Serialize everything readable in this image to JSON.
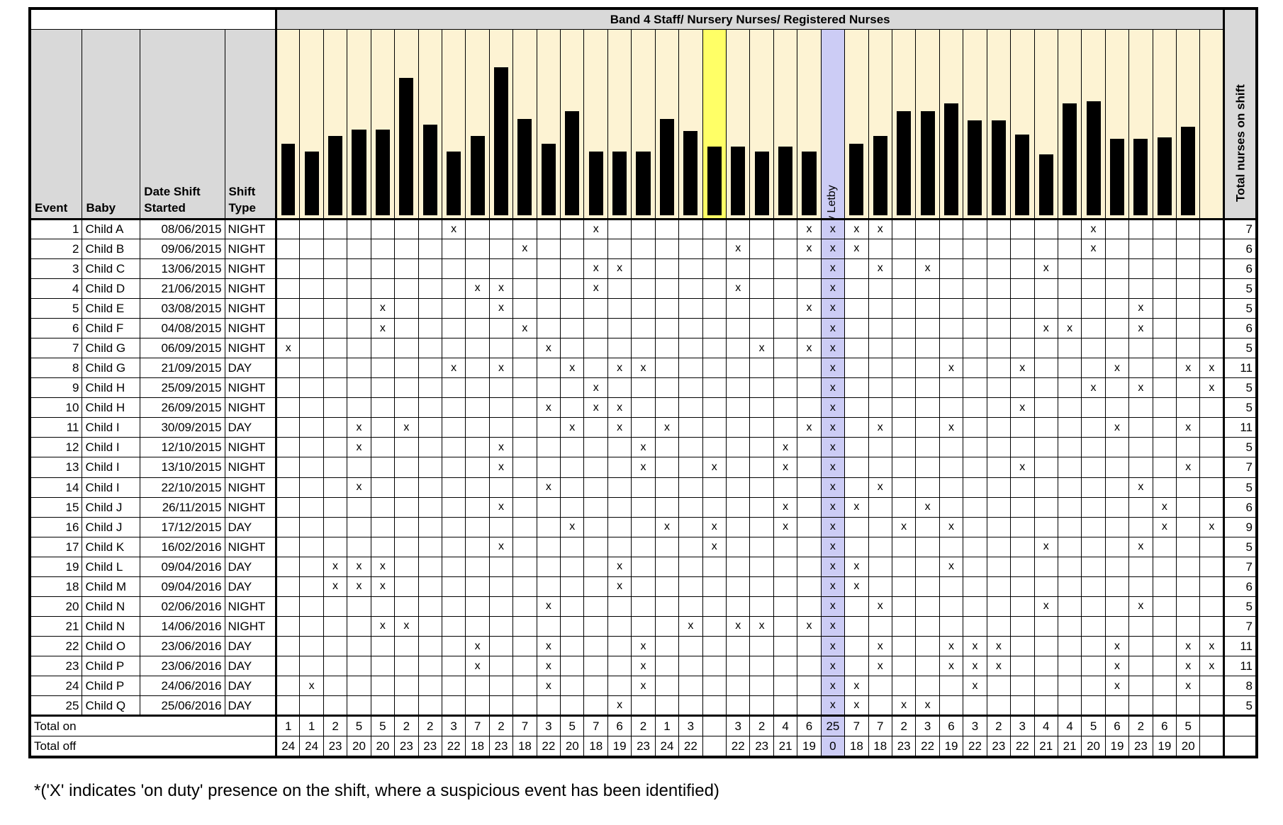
{
  "header": {
    "band_title": "Band 4 Staff/ Nursery Nurses/ Registered Nurses",
    "event": "Event",
    "baby": "Baby",
    "date": "Date Shift Started",
    "shift": "Shift Type",
    "total_col": "Total nurses on shift"
  },
  "named_nurse": {
    "index": 23,
    "name": "Lucy Letby",
    "color": "#ccccf5"
  },
  "yellow_column_index": 18,
  "colors": {
    "bar_bg": "#fdf3d3",
    "yellow": "#ffff66",
    "header_grey": "#d9d9d9"
  },
  "nurse_bar_heights": [
    0.46,
    0.41,
    0.51,
    0.55,
    0.55,
    0.88,
    0.58,
    0.41,
    0.51,
    0.95,
    0.62,
    0.46,
    0.67,
    0.41,
    0.41,
    0.41,
    0.62,
    0.54,
    0.44,
    0.44,
    0.41,
    0.44,
    0.41,
    0,
    0.46,
    0.51,
    0.67,
    0.67,
    0.72,
    0.61,
    0.61,
    0.52,
    0.39,
    0.72,
    0.73,
    0.49,
    0.49,
    0.5,
    0.57
  ],
  "rows": [
    {
      "event": "1",
      "baby": "Child A",
      "date": "08/06/2015",
      "shift": "NIGHT",
      "on": [
        7,
        13,
        22,
        23,
        24,
        25,
        34
      ],
      "total": "7"
    },
    {
      "event": "2",
      "baby": "Child B",
      "date": "09/06/2015",
      "shift": "NIGHT",
      "on": [
        10,
        19,
        22,
        23,
        24,
        34
      ],
      "total": "6"
    },
    {
      "event": "3",
      "baby": "Child C",
      "date": "13/06/2015",
      "shift": "NIGHT",
      "on": [
        13,
        14,
        23,
        25,
        27,
        32
      ],
      "total": "6"
    },
    {
      "event": "4",
      "baby": "Child D",
      "date": "21/06/2015",
      "shift": "NIGHT",
      "on": [
        8,
        9,
        13,
        19,
        23
      ],
      "total": "5"
    },
    {
      "event": "5",
      "baby": "Child E",
      "date": "03/08/2015",
      "shift": "NIGHT",
      "on": [
        4,
        9,
        22,
        23,
        36
      ],
      "total": "5"
    },
    {
      "event": "6",
      "baby": "Child F",
      "date": "04/08/2015",
      "shift": "NIGHT",
      "on": [
        4,
        10,
        23,
        32,
        33,
        36
      ],
      "total": "6"
    },
    {
      "event": "7",
      "baby": "Child G",
      "date": "06/09/2015",
      "shift": "NIGHT",
      "on": [
        0,
        11,
        20,
        22,
        23
      ],
      "total": "5"
    },
    {
      "event": "8",
      "baby": "Child G",
      "date": "21/09/2015",
      "shift": "DAY",
      "on": [
        7,
        9,
        12,
        14,
        15,
        23,
        28,
        31,
        35,
        38,
        39
      ],
      "total": "11"
    },
    {
      "event": "9",
      "baby": "Child H",
      "date": "25/09/2015",
      "shift": "NIGHT",
      "on": [
        13,
        23,
        34,
        36,
        39
      ],
      "total": "5"
    },
    {
      "event": "10",
      "baby": "Child H",
      "date": "26/09/2015",
      "shift": "NIGHT",
      "on": [
        11,
        13,
        14,
        23,
        31
      ],
      "total": "5"
    },
    {
      "event": "11",
      "baby": "Child I",
      "date": "30/09/2015",
      "shift": "DAY",
      "on": [
        3,
        5,
        12,
        14,
        16,
        22,
        23,
        25,
        28,
        35,
        38
      ],
      "total": "11"
    },
    {
      "event": "12",
      "baby": "Child I",
      "date": "12/10/2015",
      "shift": "NIGHT",
      "on": [
        3,
        9,
        15,
        21,
        23
      ],
      "total": "5"
    },
    {
      "event": "13",
      "baby": "Child I",
      "date": "13/10/2015",
      "shift": "NIGHT",
      "on": [
        9,
        15,
        18,
        21,
        23,
        31,
        38
      ],
      "total": "7"
    },
    {
      "event": "14",
      "baby": "Child I",
      "date": "22/10/2015",
      "shift": "NIGHT",
      "on": [
        3,
        11,
        23,
        25,
        36
      ],
      "total": "5"
    },
    {
      "event": "15",
      "baby": "Child J",
      "date": "26/11/2015",
      "shift": "NIGHT",
      "on": [
        9,
        21,
        23,
        24,
        27,
        37
      ],
      "total": "6"
    },
    {
      "event": "16",
      "baby": "Child J",
      "date": "17/12/2015",
      "shift": "DAY",
      "on": [
        12,
        16,
        18,
        21,
        23,
        26,
        28,
        37,
        39
      ],
      "total": "9"
    },
    {
      "event": "17",
      "baby": "Child K",
      "date": "16/02/2016",
      "shift": "NIGHT",
      "on": [
        9,
        18,
        23,
        32,
        36
      ],
      "total": "5"
    },
    {
      "event": "19",
      "baby": "Child L",
      "date": "09/04/2016",
      "shift": "DAY",
      "on": [
        2,
        3,
        4,
        14,
        23,
        24,
        28
      ],
      "total": "7"
    },
    {
      "event": "18",
      "baby": "Child M",
      "date": "09/04/2016",
      "shift": "DAY",
      "on": [
        2,
        3,
        4,
        14,
        23,
        24
      ],
      "total": "6"
    },
    {
      "event": "20",
      "baby": "Child N",
      "date": "02/06/2016",
      "shift": "NIGHT",
      "on": [
        11,
        23,
        25,
        32,
        36
      ],
      "total": "5"
    },
    {
      "event": "21",
      "baby": "Child N",
      "date": "14/06/2016",
      "shift": "NIGHT",
      "on": [
        4,
        5,
        17,
        19,
        20,
        22,
        23
      ],
      "total": "7"
    },
    {
      "event": "22",
      "baby": "Child O",
      "date": "23/06/2016",
      "shift": "DAY",
      "on": [
        8,
        11,
        15,
        23,
        25,
        28,
        29,
        30,
        35,
        38,
        39
      ],
      "total": "11"
    },
    {
      "event": "23",
      "baby": "Child P",
      "date": "23/06/2016",
      "shift": "DAY",
      "on": [
        8,
        11,
        15,
        23,
        25,
        28,
        29,
        30,
        35,
        38,
        39
      ],
      "total": "11"
    },
    {
      "event": "24",
      "baby": "Child P",
      "date": "24/06/2016",
      "shift": "DAY",
      "on": [
        1,
        11,
        15,
        23,
        24,
        29,
        35,
        38
      ],
      "total": "8"
    },
    {
      "event": "25",
      "baby": "Child Q",
      "date": "25/06/2016",
      "shift": "DAY",
      "on": [
        14,
        23,
        24,
        26,
        27
      ],
      "total": "5"
    }
  ],
  "mark": "x",
  "totals": {
    "on_label": "Total on",
    "off_label": "Total off",
    "on": [
      "1",
      "1",
      "2",
      "5",
      "5",
      "2",
      "2",
      "3",
      "7",
      "2",
      "7",
      "3",
      "5",
      "7",
      "6",
      "2",
      "1",
      "3",
      "",
      "3",
      "2",
      "4",
      "6",
      "25",
      "7",
      "7",
      "2",
      "3",
      "6",
      "3",
      "2",
      "3",
      "4",
      "4",
      "5",
      "6",
      "2",
      "6",
      "5"
    ],
    "off": [
      "24",
      "24",
      "23",
      "20",
      "20",
      "23",
      "23",
      "22",
      "18",
      "23",
      "18",
      "22",
      "20",
      "18",
      "19",
      "23",
      "24",
      "22",
      "",
      "22",
      "23",
      "21",
      "19",
      "0",
      "18",
      "18",
      "23",
      "22",
      "19",
      "22",
      "23",
      "22",
      "21",
      "21",
      "20",
      "19",
      "23",
      "19",
      "20"
    ]
  },
  "footnote": "*('X' indicates 'on duty' presence on the shift, where a suspicious event has been identified)"
}
